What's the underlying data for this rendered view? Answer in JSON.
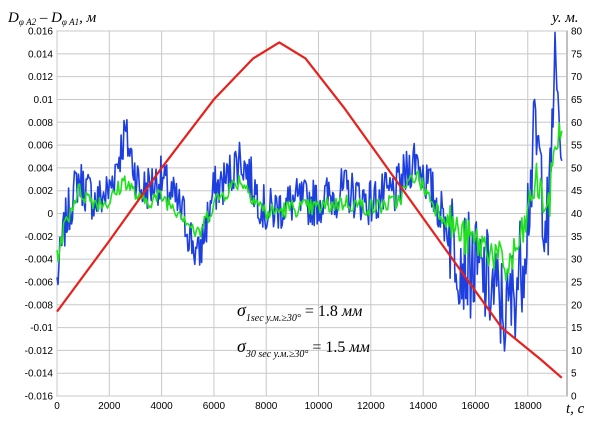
{
  "chart_data": {
    "type": "line",
    "y_left_label": {
      "main": "D",
      "sub1": "φ A2",
      "mid": " – D",
      "sub2": "φ A1",
      "unit": ", м"
    },
    "y_right_label": "у. м.",
    "x_label": "t, с",
    "x_ticks": [
      "0",
      "2000",
      "4000",
      "6000",
      "8000",
      "10000",
      "12000",
      "14000",
      "16000",
      "18000"
    ],
    "y_left_ticks": [
      "0.016",
      "0.014",
      "0.012",
      "0.01",
      "0.008",
      "0.006",
      "0.004",
      "0.002",
      "0",
      "-0.002",
      "-0.004",
      "-0.006",
      "-0.008",
      "-0.01",
      "-0.012",
      "-0.014",
      "-0.016"
    ],
    "y_right_ticks": [
      "80",
      "75",
      "70",
      "65",
      "60",
      "55",
      "50",
      "45",
      "40",
      "35",
      "30",
      "25",
      "20",
      "15",
      "10",
      "5",
      "0"
    ],
    "xlim": [
      0,
      19500
    ],
    "ylim_left": [
      -0.016,
      0.016
    ],
    "ylim_right": [
      0,
      80
    ],
    "grid": true,
    "series": [
      {
        "axis": "right",
        "color": "#e8201c",
        "x": [
          0,
          2000,
          4000,
          6000,
          7500,
          8500,
          9500,
          11000,
          13000,
          15000,
          17000,
          18500,
          19300
        ],
        "values": [
          18.5,
          34,
          50,
          65,
          74,
          77.5,
          74,
          63,
          47,
          31,
          15,
          8,
          4
        ]
      },
      {
        "axis": "left",
        "color": "#1e3fe0",
        "x": [
          0,
          300,
          800,
          1500,
          2000,
          2600,
          3200,
          4000,
          4800,
          5400,
          6000,
          6500,
          7000,
          8000,
          9000,
          10000,
          11000,
          12000,
          13000,
          13700,
          14500,
          15500,
          16500,
          17200,
          17800,
          18300,
          18800,
          19000,
          19300
        ],
        "values": [
          -0.006,
          -0.001,
          0.003,
          0.001,
          0.002,
          0.007,
          0.002,
          0.003,
          0.0,
          -0.004,
          0.002,
          0.003,
          0.005,
          0.0,
          0.001,
          0.001,
          0.002,
          0.001,
          0.002,
          0.005,
          0.001,
          -0.004,
          -0.006,
          -0.009,
          -0.004,
          0.007,
          -0.002,
          0.013,
          0.006
        ]
      },
      {
        "axis": "left",
        "color": "#22e01e",
        "x": [
          0,
          300,
          800,
          1500,
          2000,
          2600,
          3200,
          4000,
          4800,
          5400,
          6000,
          6500,
          7000,
          8000,
          9000,
          10000,
          11000,
          12000,
          13000,
          13700,
          14500,
          15500,
          16500,
          17200,
          17800,
          18300,
          18800,
          19000,
          19300
        ],
        "values": [
          -0.004,
          -0.001,
          0.002,
          0.001,
          0.001,
          0.003,
          0.001,
          0.0015,
          0.0,
          -0.002,
          0.001,
          0.002,
          0.003,
          0.0,
          0.0005,
          0.0005,
          0.001,
          0.0005,
          0.001,
          0.0035,
          0.0005,
          -0.002,
          -0.003,
          -0.005,
          -0.002,
          0.003,
          0.0,
          0.006,
          0.007
        ]
      }
    ],
    "annotations": [
      {
        "sigma": "σ",
        "subscript": "1sec у.м.≥30°",
        "eq": "= 1.8",
        "unit": "мм"
      },
      {
        "sigma": "σ",
        "subscript": "30 sec у.м.≥30°",
        "eq": "= 1.5",
        "unit": "мм"
      }
    ]
  }
}
